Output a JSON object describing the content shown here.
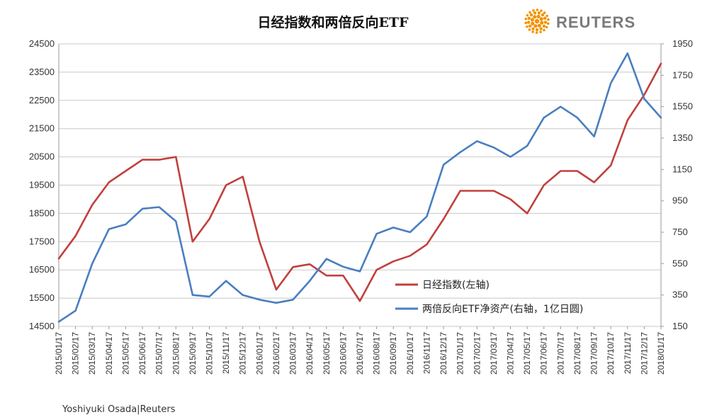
{
  "brand": {
    "name": "REUTERS",
    "logo_color": "#f39200"
  },
  "credit": "Yoshiyuki Osada|Reuters",
  "chart_data": {
    "type": "line",
    "title": "日经指数和两倍反向ETF",
    "x": [
      "2015/01/17",
      "2015/02/17",
      "2015/03/17",
      "2015/04/17",
      "2015/05/17",
      "2015/06/17",
      "2015/07/17",
      "2015/08/17",
      "2015/09/17",
      "2015/10/17",
      "2015/11/17",
      "2015/12/17",
      "2016/01/17",
      "2016/02/17",
      "2016/03/17",
      "2016/04/17",
      "2016/05/17",
      "2016/06/17",
      "2016/07/17",
      "2016/08/17",
      "2016/09/17",
      "2016/10/17",
      "2016/11/17",
      "2016/12/17",
      "2017/01/17",
      "2017/02/17",
      "2017/03/17",
      "2017/04/17",
      "2017/05/17",
      "2017/06/17",
      "2017/07/17",
      "2017/08/17",
      "2017/09/17",
      "2017/10/17",
      "2017/11/17",
      "2017/12/17",
      "2018/01/17"
    ],
    "y_left": {
      "ylim": [
        14500,
        24500
      ],
      "ticks": [
        "24500",
        "23500",
        "22500",
        "21500",
        "20500",
        "19500",
        "18500",
        "17500",
        "16500",
        "15500",
        "14500"
      ]
    },
    "y_right": {
      "ylim": [
        150,
        1950
      ],
      "ticks": [
        "1950",
        "1750",
        "1550",
        "1350",
        "1150",
        "950",
        "750",
        "550",
        "350",
        "150"
      ]
    },
    "series": [
      {
        "name": "日经指数(左轴)",
        "axis": "left",
        "color": "#c0403c",
        "values": [
          16900,
          17700,
          18800,
          19600,
          20000,
          20400,
          20400,
          20500,
          17500,
          18300,
          19500,
          19800,
          17500,
          15800,
          16600,
          16700,
          16300,
          16300,
          15400,
          16500,
          16800,
          17000,
          17400,
          18300,
          19300,
          19300,
          19300,
          19000,
          18500,
          19500,
          20000,
          20000,
          19600,
          20200,
          21800,
          22700,
          23800
        ]
      },
      {
        "name": "两倍反向ETF净资产(右轴，1亿日圆)",
        "axis": "right",
        "color": "#4a7ec0",
        "values": [
          180,
          250,
          550,
          770,
          800,
          900,
          910,
          820,
          350,
          340,
          440,
          350,
          320,
          300,
          320,
          440,
          580,
          530,
          500,
          740,
          780,
          750,
          850,
          1180,
          1260,
          1330,
          1290,
          1230,
          1300,
          1480,
          1550,
          1480,
          1360,
          1700,
          1890,
          1600,
          1480
        ]
      }
    ]
  }
}
